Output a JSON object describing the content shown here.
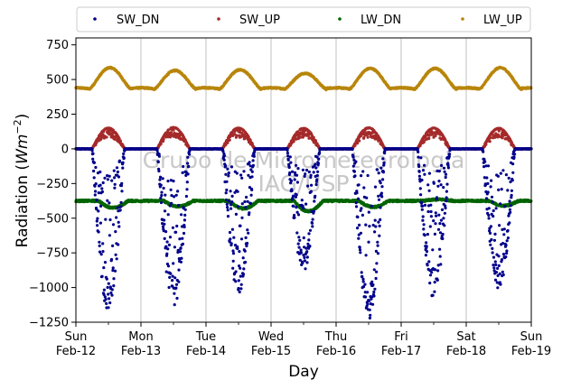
{
  "chart_data": {
    "type": "scatter",
    "xlabel": "Day",
    "ylabel": "Radiation",
    "ylabel_unit": "Wm",
    "ylabel_exponent": "−2",
    "ylim": [
      -1250,
      800
    ],
    "xlim_days": [
      0,
      7
    ],
    "y_ticks": [
      750,
      500,
      250,
      0,
      -250,
      -500,
      -750,
      -1000,
      -1250
    ],
    "y_tick_labels": [
      "750",
      "500",
      "250",
      "0",
      "−250",
      "−500",
      "−750",
      "−1000",
      "−1250"
    ],
    "x_ticks": [
      {
        "day": 0,
        "line1": "Sun",
        "line2": "Feb-12"
      },
      {
        "day": 1,
        "line1": "Mon",
        "line2": "Feb-13"
      },
      {
        "day": 2,
        "line1": "Tue",
        "line2": "Feb-14"
      },
      {
        "day": 3,
        "line1": "Wed",
        "line2": "Feb-15"
      },
      {
        "day": 4,
        "line1": "Thu",
        "line2": "Feb-16"
      },
      {
        "day": 5,
        "line1": "Fri",
        "line2": "Feb-17"
      },
      {
        "day": 6,
        "line1": "Sat",
        "line2": "Feb-18"
      },
      {
        "day": 7,
        "line1": "Sun",
        "line2": "Feb-19"
      }
    ],
    "grid": "vertical-major",
    "legend": {
      "placement": "top",
      "columns": 4
    },
    "watermark": [
      "Grupo de Micrometeorologia",
      "IAG/USP"
    ],
    "series": [
      {
        "name": "SW_DN",
        "color": "#00008b",
        "baseline": 0,
        "day_start": 0.25,
        "day_end": 0.75,
        "daily_peaks": [
          -1180,
          -1150,
          -1050,
          -880,
          -1230,
          -1080,
          -1040
        ]
      },
      {
        "name": "SW_UP",
        "color": "#a52a2a",
        "baseline": 0,
        "day_start": 0.25,
        "day_end": 0.75,
        "daily_peaks": [
          150,
          155,
          150,
          148,
          152,
          150,
          148
        ]
      },
      {
        "name": "LW_DN",
        "color": "#006400",
        "base": -375,
        "daily_min": [
          -425,
          -415,
          -430,
          -450,
          -420,
          -365,
          -410
        ]
      },
      {
        "name": "LW_UP",
        "color": "#b8860b",
        "base": 430,
        "daily_peaks": [
          585,
          565,
          570,
          545,
          580,
          580,
          585
        ]
      }
    ]
  }
}
